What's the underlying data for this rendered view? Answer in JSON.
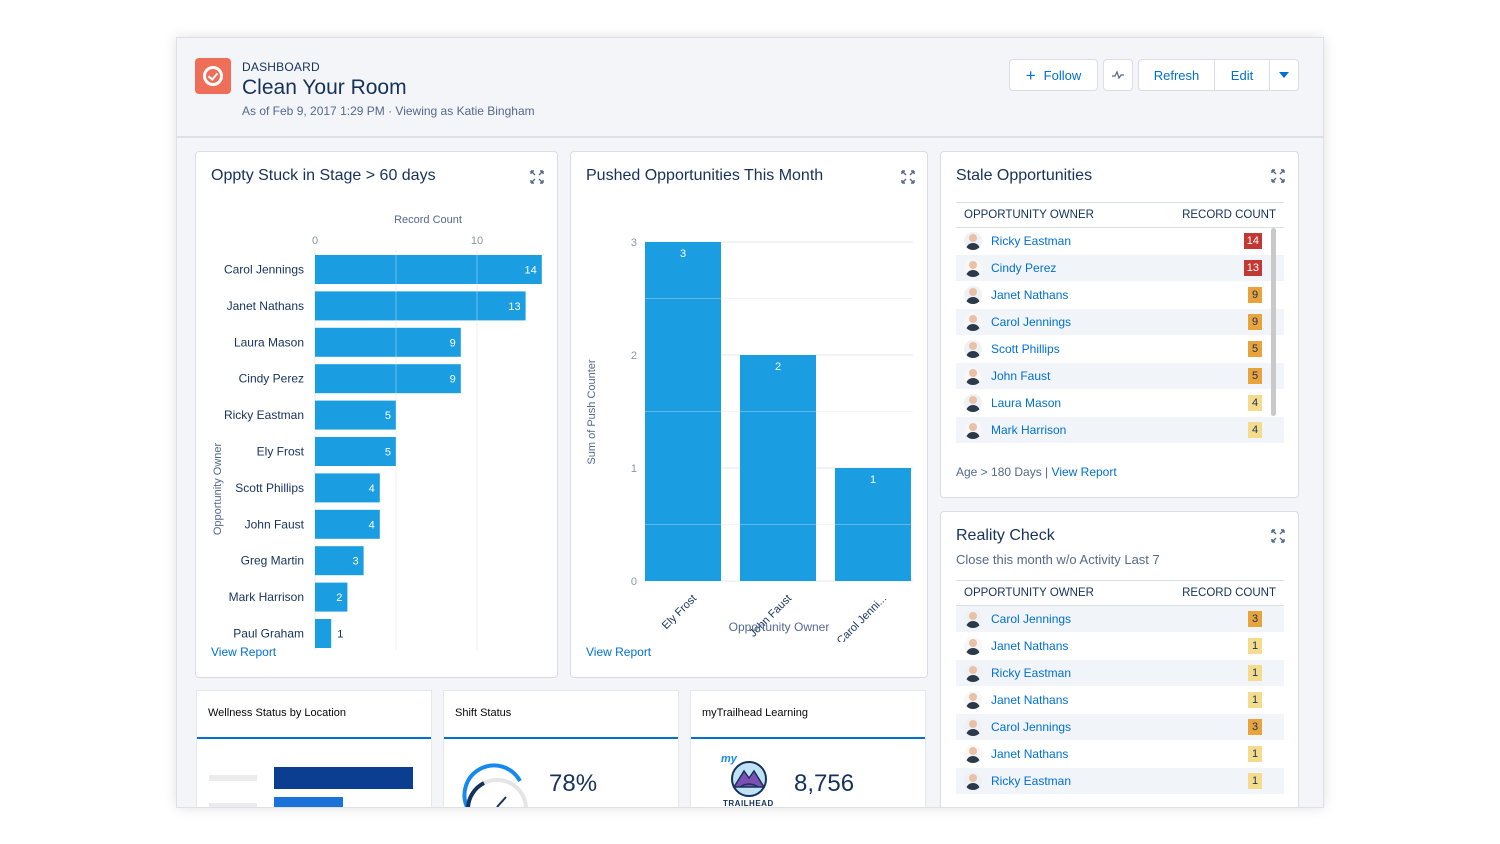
{
  "header": {
    "type_label": "DASHBOARD",
    "title": "Clean Your Room",
    "subtitle": "As of Feb 9, 2017 1:29 PM · Viewing as Katie Bingham",
    "buttons": {
      "follow": "Follow",
      "refresh": "Refresh",
      "edit": "Edit"
    },
    "icons": {
      "logo": "dashboard-check-icon",
      "pulse": "activity-icon",
      "menu": "chevron-down-icon"
    },
    "colors": {
      "logo": "#ee6e58",
      "accent": "#0070d2"
    }
  },
  "stuck_card": {
    "title": "Oppty Stuck in Stage > 60 days",
    "view_report": "View Report",
    "chart_data": {
      "type": "bar",
      "orientation": "horizontal",
      "title": "Oppty Stuck in Stage > 60 days",
      "xlabel": "Record Count",
      "ylabel": "Opportunity Owner",
      "xticks": [
        0,
        10
      ],
      "xlim": [
        0,
        14
      ],
      "categories": [
        "Carol Jennings",
        "Janet Nathans",
        "Laura Mason",
        "Cindy Perez",
        "Ricky Eastman",
        "Ely Frost",
        "Scott Phillips",
        "John Faust",
        "Greg Martin",
        "Mark Harrison",
        "Paul Graham"
      ],
      "values": [
        14,
        13,
        9,
        9,
        5,
        5,
        4,
        4,
        3,
        2,
        1
      ],
      "bar_color": "#1b9de2",
      "grid": true
    }
  },
  "pushed_card": {
    "title": "Pushed Opportunities This Month",
    "view_report": "View Report",
    "chart_data": {
      "type": "bar",
      "orientation": "vertical",
      "title": "Pushed Opportunities This Month",
      "xlabel": "Opportunity Owner",
      "ylabel": "Sum of Push Counter",
      "yticks": [
        0,
        1,
        2,
        3
      ],
      "ylim": [
        0,
        3
      ],
      "categories": [
        "Ely Frost",
        "John Faust",
        "Carol Jenni..."
      ],
      "values": [
        3,
        2,
        1
      ],
      "bar_color": "#1b9de2",
      "grid": true
    }
  },
  "stale_card": {
    "title": "Stale Opportunities",
    "col_owner": "OPPORTUNITY OWNER",
    "col_count": "RECORD COUNT",
    "rows": [
      {
        "name": "Ricky Eastman",
        "count": "14",
        "level": "red"
      },
      {
        "name": "Cindy Perez",
        "count": "13",
        "level": "red"
      },
      {
        "name": "Janet Nathans",
        "count": "9",
        "level": "orange"
      },
      {
        "name": "Carol Jennings",
        "count": "9",
        "level": "orange"
      },
      {
        "name": "Scott Phillips",
        "count": "5",
        "level": "orange"
      },
      {
        "name": "John Faust",
        "count": "5",
        "level": "orange"
      },
      {
        "name": "Laura Mason",
        "count": "4",
        "level": "yellow"
      },
      {
        "name": "Mark Harrison",
        "count": "4",
        "level": "yellow"
      }
    ],
    "footer_text": "Age > 180 Days |",
    "view_report": "View Report"
  },
  "reality_card": {
    "title": "Reality Check",
    "subtitle": "Close this month w/o Activity Last 7",
    "col_owner": "OPPORTUNITY OWNER",
    "col_count": "RECORD COUNT",
    "rows": [
      {
        "name": "Carol Jennings",
        "count": "3",
        "level": "orange"
      },
      {
        "name": "Janet Nathans",
        "count": "1",
        "level": "yellow"
      },
      {
        "name": "Ricky Eastman",
        "count": "1",
        "level": "yellow"
      },
      {
        "name": "Janet Nathans",
        "count": "1",
        "level": "yellow"
      },
      {
        "name": "Carol Jennings",
        "count": "3",
        "level": "orange"
      },
      {
        "name": "Janet Nathans",
        "count": "1",
        "level": "yellow"
      },
      {
        "name": "Ricky Eastman",
        "count": "1",
        "level": "yellow"
      }
    ]
  },
  "mini_cards": {
    "wellness": {
      "title": "Wellness Status by Location"
    },
    "shift": {
      "title": "Shift Status",
      "value": "78%",
      "gauge_fraction": 0.78
    },
    "trailhead": {
      "title": "myTrailhead Learning",
      "value": "8,756",
      "logo_top": "my",
      "logo_text": "TRAILHEAD"
    }
  }
}
